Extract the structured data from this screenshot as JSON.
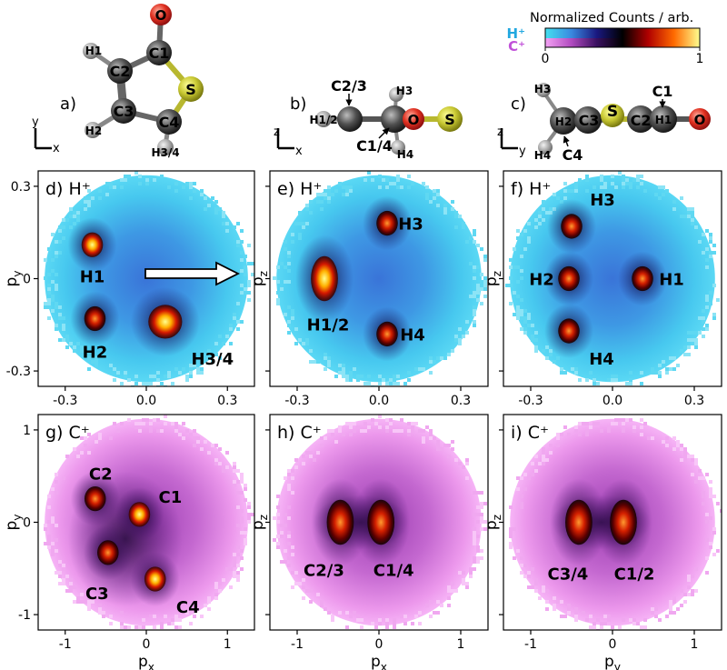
{
  "colorbar": {
    "title": "Normalized Counts / arb.",
    "label_h": "H⁺",
    "label_c": "C⁺",
    "tick_min": "0",
    "tick_max": "1",
    "h_colors": [
      "#44e0f0",
      "#3a8ae0",
      "#1a1880",
      "#000000",
      "#b00000",
      "#ff6a00",
      "#ffff90"
    ],
    "c_colors": [
      "#f4a2f4",
      "#b24cc0",
      "#3a1060",
      "#000000",
      "#b00000",
      "#ff6a00",
      "#ffff90"
    ]
  },
  "molecules": [
    {
      "panel": "a)",
      "axis_v": "y",
      "axis_h": "x",
      "atoms": [
        "O",
        "C1",
        "C2",
        "S",
        "C3",
        "C4",
        "H1",
        "H2",
        "H3/4"
      ]
    },
    {
      "panel": "b)",
      "axis_v": "z",
      "axis_h": "x",
      "atoms": [
        "C2/3",
        "H3",
        "H1/2",
        "O",
        "S",
        "C1/4",
        "H4"
      ]
    },
    {
      "panel": "c)",
      "axis_v": "z",
      "axis_h": "y",
      "atoms": [
        "H3",
        "C1",
        "S",
        "H2",
        "C3",
        "C2",
        "H1",
        "O",
        "H4",
        "C4"
      ]
    }
  ],
  "chart_data": [
    {
      "panel": "d)",
      "ion": "H⁺",
      "type": "heatmap",
      "xlabel": "pₓ",
      "ylabel": "p_y",
      "xticks": [
        "-0.3",
        "0.0",
        "0.3"
      ],
      "yticks": [
        "0.3",
        "0",
        "-0.3"
      ],
      "xlim": [
        -0.4,
        0.4
      ],
      "ylim": [
        -0.35,
        0.35
      ],
      "peaks": [
        {
          "label": "H1",
          "x": -0.2,
          "y": 0.11
        },
        {
          "label": "H2",
          "x": -0.19,
          "y": -0.13
        },
        {
          "label": "H3/4",
          "x": 0.07,
          "y": -0.14
        }
      ]
    },
    {
      "panel": "e)",
      "ion": "H⁺",
      "type": "heatmap",
      "xlabel": "pₓ",
      "ylabel": "p_z",
      "xticks": [
        "-0.3",
        "0.0",
        "0.3"
      ],
      "xlim": [
        -0.4,
        0.4
      ],
      "ylim": [
        -0.35,
        0.35
      ],
      "peaks": [
        {
          "label": "H3",
          "x": 0.03,
          "y": 0.18
        },
        {
          "label": "H1/2",
          "x": -0.2,
          "y": 0.0
        },
        {
          "label": "H4",
          "x": 0.03,
          "y": -0.18
        }
      ]
    },
    {
      "panel": "f)",
      "ion": "H⁺",
      "type": "heatmap",
      "xlabel": "p_y",
      "ylabel": "p_z",
      "xticks": [
        "-0.3",
        "0.0",
        "0.3"
      ],
      "xlim": [
        -0.4,
        0.4
      ],
      "ylim": [
        -0.35,
        0.35
      ],
      "peaks": [
        {
          "label": "H3",
          "x": -0.15,
          "y": 0.17
        },
        {
          "label": "H2",
          "x": -0.16,
          "y": 0.0
        },
        {
          "label": "H1",
          "x": 0.11,
          "y": 0.0
        },
        {
          "label": "H4",
          "x": -0.16,
          "y": -0.17
        }
      ]
    },
    {
      "panel": "g)",
      "ion": "C⁺",
      "type": "heatmap",
      "xlabel": "pₓ",
      "ylabel": "p_y",
      "xticks": [
        "-1",
        "0",
        "1"
      ],
      "yticks": [
        "1",
        "0",
        "-1"
      ],
      "xlim": [
        -1.1,
        1.1
      ],
      "ylim": [
        -1.1,
        1.1
      ],
      "peaks": [
        {
          "label": "C2",
          "x": -0.52,
          "y": 0.24
        },
        {
          "label": "C1",
          "x": -0.07,
          "y": 0.08
        },
        {
          "label": "C3",
          "x": -0.39,
          "y": -0.31
        },
        {
          "label": "C4",
          "x": 0.09,
          "y": -0.58
        }
      ]
    },
    {
      "panel": "h)",
      "ion": "C⁺",
      "type": "heatmap",
      "xlabel": "pₓ",
      "ylabel": "p_z",
      "xticks": [
        "-1",
        "0",
        "1"
      ],
      "xlim": [
        -1.1,
        1.1
      ],
      "ylim": [
        -1.1,
        1.1
      ],
      "peaks": [
        {
          "label": "C2/3",
          "x": -0.39,
          "y": 0.0
        },
        {
          "label": "C1/4",
          "x": 0.02,
          "y": 0.0
        }
      ]
    },
    {
      "panel": "i)",
      "ion": "C⁺",
      "type": "heatmap",
      "xlabel": "p_y",
      "ylabel": "p_z",
      "xticks": [
        "-1",
        "0",
        "1"
      ],
      "xlim": [
        -1.1,
        1.1
      ],
      "ylim": [
        -1.1,
        1.1
      ],
      "peaks": [
        {
          "label": "C3/4",
          "x": -0.34,
          "y": 0.0
        },
        {
          "label": "C1/2",
          "x": 0.11,
          "y": 0.0
        }
      ]
    }
  ]
}
